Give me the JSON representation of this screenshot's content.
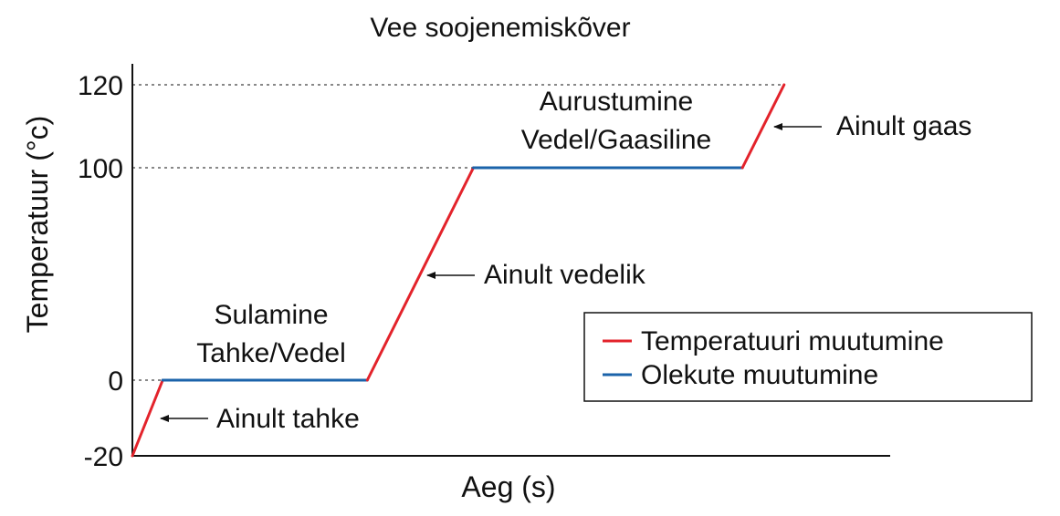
{
  "chart_data": {
    "type": "line",
    "title": "Vee soojenemiskõver",
    "xlabel": "Aeg (s)",
    "ylabel": "Temperatuur (°c)",
    "yticks": [
      {
        "value": -20,
        "label": "-20"
      },
      {
        "value": 0,
        "label": "0"
      },
      {
        "value": 100,
        "label": "100"
      },
      {
        "value": 120,
        "label": "120"
      }
    ],
    "y_axis_scale": "piecewise (0–100 segment compressed)",
    "ylim": [
      -20,
      120
    ],
    "grid": "dashed reference lines at 0, 100 and 120",
    "segments": [
      {
        "kind": "temperature",
        "x": [
          0.0,
          0.04
        ],
        "y": [
          -20,
          0
        ]
      },
      {
        "kind": "phase",
        "x": [
          0.04,
          0.31
        ],
        "y": [
          0,
          0
        ]
      },
      {
        "kind": "temperature",
        "x": [
          0.31,
          0.45
        ],
        "y": [
          0,
          100
        ]
      },
      {
        "kind": "phase",
        "x": [
          0.45,
          0.805
        ],
        "y": [
          100,
          100
        ]
      },
      {
        "kind": "temperature",
        "x": [
          0.805,
          0.86
        ],
        "y": [
          100,
          120
        ]
      }
    ],
    "annotations": {
      "solid_only": "Ainult tahke",
      "melting_title": "Sulamine",
      "melting_sub": "Tahke/Vedel",
      "liquid_only": "Ainult vedelik",
      "boiling_title": "Aurustumine",
      "boiling_sub": "Vedel/Gaasiline",
      "gas_only": "Ainult gaas"
    },
    "legend": {
      "placement": "right-middle",
      "items": [
        {
          "kind": "temperature",
          "label": "Temperatuuri muutumine",
          "color": "#e3232b"
        },
        {
          "kind": "phase",
          "label": "Olekute muutumine",
          "color": "#1b63aa"
        }
      ]
    },
    "colors": {
      "temperature": "#e3232b",
      "phase": "#1b63aa",
      "axis": "#111111"
    }
  }
}
